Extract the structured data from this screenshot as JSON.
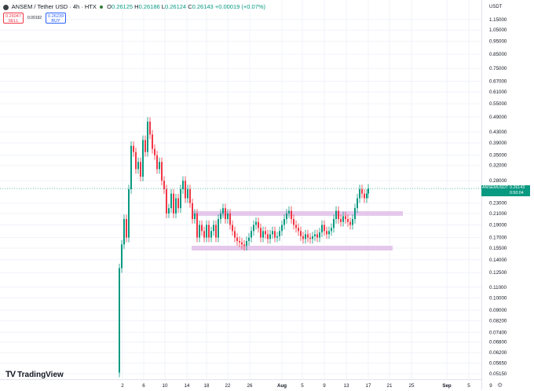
{
  "header": {
    "symbol": "ANSEM / Tether USD",
    "interval": "4h",
    "exchange": "HTX",
    "title": "ANSEM / Tether USD · 4h · HTX",
    "open": "0.26125",
    "high": "0.26186",
    "low": "0.26124",
    "close": "0.26143",
    "change": "+0.00019 (+0.07%)"
  },
  "trade": {
    "sell_price": "0.26047",
    "sell_label": "SELL",
    "spread": "0.00192",
    "buy_price": "0.26239",
    "buy_label": "BUY"
  },
  "price_axis": {
    "currency": "USDT",
    "ticks": [
      "1.15000",
      "1.05000",
      "0.95000",
      "0.85000",
      "0.75000",
      "0.67000",
      "0.61000",
      "0.55000",
      "0.49000",
      "0.43000",
      "0.39000",
      "0.35000",
      "0.32000",
      "0.28000",
      "0.23000",
      "0.21000",
      "0.19000",
      "0.17000",
      "0.15500",
      "0.14000",
      "0.12500",
      "0.11000",
      "0.10000",
      "0.09000",
      "0.08200",
      "0.07400",
      "0.06800",
      "0.06200",
      "0.05650",
      "0.05150"
    ]
  },
  "time_axis": {
    "ticks": [
      "2",
      "6",
      "10",
      "14",
      "18",
      "22",
      "26",
      "Aug",
      "5",
      "9",
      "13",
      "17",
      "21",
      "25",
      "Sep",
      "5",
      "9"
    ]
  },
  "last_price": {
    "symbol": "ANSEMUSDT",
    "value": "0.26143",
    "countdown": "0:50:04"
  },
  "branding": {
    "logo_text": "TradingView",
    "logo_mark": "TV"
  },
  "colors": {
    "up": "#089981",
    "down": "#f23645",
    "zone": "#e1bee7",
    "grid": "#f0f3fa"
  },
  "chart_data": {
    "type": "candlestick",
    "title": "ANSEM / Tether USD · 4h · HTX",
    "y_scale": "log",
    "ylim": [
      0.049,
      1.2
    ],
    "current_price": 0.26143,
    "support_zones": [
      {
        "price": 0.21
      },
      {
        "price": 0.155
      }
    ],
    "last_candle": {
      "open": 0.26125,
      "high": 0.26186,
      "low": 0.26124,
      "close": 0.26143
    }
  }
}
